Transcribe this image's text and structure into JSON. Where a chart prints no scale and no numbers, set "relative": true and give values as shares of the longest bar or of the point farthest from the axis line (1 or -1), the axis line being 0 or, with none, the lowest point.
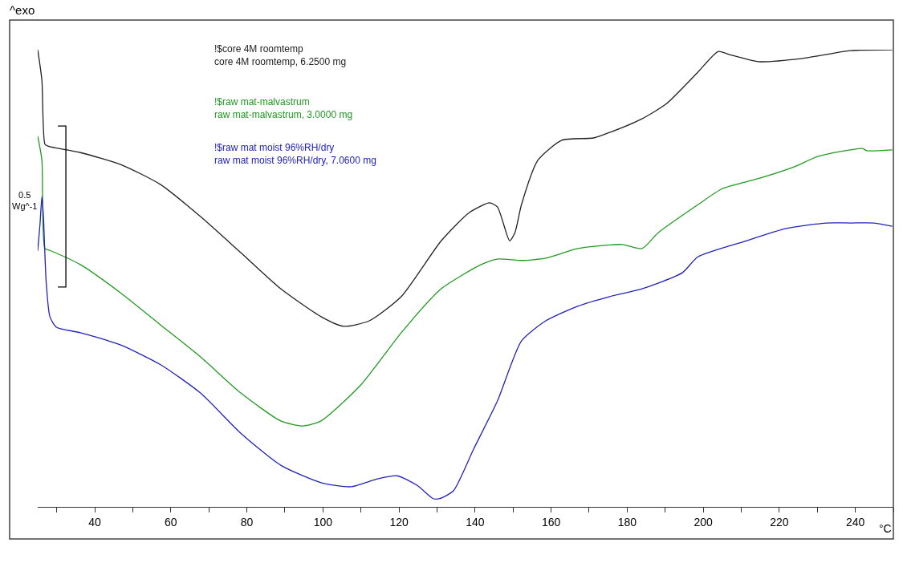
{
  "chart_data": {
    "type": "line",
    "relative": true,
    "legend": false,
    "marker": "none",
    "line_style": "solid",
    "xlabel": "°C",
    "ylabel": "^exo",
    "annotations": [
      "0.5\nWg^-1"
    ],
    "xlim": [
      25,
      250
    ],
    "xticks": [
      {
        "value": 30,
        "label": null
      },
      40,
      {
        "value": 50,
        "label": null
      },
      60,
      {
        "value": 70,
        "label": null
      },
      80,
      {
        "value": 90,
        "label": null
      },
      100,
      {
        "value": 110,
        "label": null
      },
      120,
      {
        "value": 130,
        "label": null
      },
      140,
      {
        "value": 150,
        "label": null
      },
      160,
      {
        "value": 170,
        "label": null
      },
      180,
      {
        "value": 190,
        "label": null
      },
      200,
      {
        "value": 210,
        "label": null
      },
      220,
      {
        "value": 230,
        "label": null
      },
      240,
      {
        "value": 250,
        "label": null
      }
    ],
    "series": [
      {
        "name": "!$core 4M roomtemp\ncore 4M roomtemp, 6.2500 mg",
        "color": "#222222",
        "x": [
          25.0,
          26.1,
          26.9,
          27.8,
          36.2,
          46.8,
          57.3,
          67.8,
          78.4,
          88.9,
          99.5,
          105.4,
          112.2,
          120.6,
          131.1,
          138.5,
          143.8,
          145.9,
          149.1,
          150.5,
          152.2,
          156.5,
          162.8,
          171.2,
          175.4,
          183.9,
          190.2,
          198.6,
          203.9,
          207.1,
          214.5,
          226.1,
          238.7,
          249.7
        ],
        "values": [
          1.0,
          0.933,
          0.793,
          0.789,
          0.775,
          0.749,
          0.705,
          0.635,
          0.556,
          0.477,
          0.416,
          0.395,
          0.407,
          0.46,
          0.582,
          0.644,
          0.665,
          0.656,
          0.582,
          0.6,
          0.661,
          0.758,
          0.802,
          0.807,
          0.819,
          0.849,
          0.881,
          0.951,
          0.996,
          0.989,
          0.974,
          0.981,
          0.998,
          1.0
        ]
      },
      {
        "name": "!$raw mat-malvastrum\nraw mat-malvastrum, 3.0000 mg",
        "color": "#229922",
        "x": [
          25.0,
          26.1,
          26.9,
          28.2,
          36.2,
          46.8,
          57.3,
          67.8,
          78.4,
          88.9,
          94.8,
          99.5,
          110.0,
          120.6,
          131.1,
          141.6,
          145.9,
          152.2,
          158.6,
          167.0,
          178.7,
          183.9,
          188.2,
          198.6,
          205.0,
          214.5,
          224.0,
          230.3,
          241.9,
          243.0,
          249.7
        ],
        "values": [
          0.811,
          0.758,
          0.565,
          0.561,
          0.53,
          0.468,
          0.398,
          0.328,
          0.249,
          0.188,
          0.177,
          0.188,
          0.267,
          0.381,
          0.477,
          0.53,
          0.542,
          0.539,
          0.544,
          0.565,
          0.574,
          0.565,
          0.6,
          0.661,
          0.696,
          0.718,
          0.744,
          0.767,
          0.784,
          0.779,
          0.781
        ]
      },
      {
        "name": "!$raw mat moist 96%RH/dry\nraw mat moist 96%RH/dry, 7.0600 mg",
        "color": "#2222bb",
        "x": [
          25.0,
          25.6,
          26.1,
          26.5,
          27.2,
          28.2,
          29.9,
          36.2,
          46.8,
          57.3,
          67.8,
          78.4,
          88.9,
          99.5,
          107.3,
          114.3,
          119.5,
          124.8,
          129.0,
          130.7,
          134.3,
          139.6,
          145.9,
          152.2,
          158.6,
          167.0,
          175.4,
          183.9,
          194.5,
          198.6,
          211.3,
          221.8,
          232.3,
          238.7,
          245.0,
          249.7
        ],
        "values": [
          0.56,
          0.618,
          0.679,
          0.635,
          0.495,
          0.416,
          0.393,
          0.381,
          0.354,
          0.311,
          0.249,
          0.161,
          0.091,
          0.053,
          0.044,
          0.061,
          0.068,
          0.047,
          0.018,
          0.018,
          0.035,
          0.126,
          0.232,
          0.363,
          0.407,
          0.439,
          0.46,
          0.477,
          0.512,
          0.547,
          0.582,
          0.609,
          0.621,
          0.621,
          0.621,
          0.614
        ]
      },
      {
        "color": "#000000",
        "x": [
          30.3,
          32.4,
          32.4,
          30.3
        ],
        "values": [
          0.833,
          0.833,
          0.481,
          0.481
        ]
      }
    ]
  }
}
